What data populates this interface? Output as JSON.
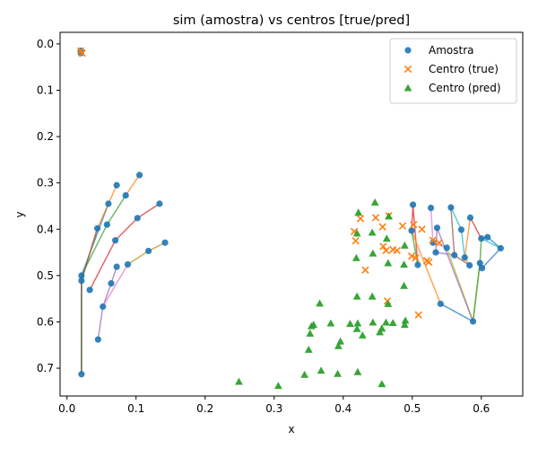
{
  "chart_data": {
    "type": "scatter",
    "title": "sim (amostra) vs centros [true/pred]",
    "xlabel": "x",
    "ylabel": "y",
    "xlim": [
      -0.01,
      0.66
    ],
    "ylim": [
      0.76,
      -0.025
    ],
    "y_inverted": true,
    "grid": false,
    "legend_position": "top-right",
    "x_ticks": [
      "0.0",
      "0.1",
      "0.2",
      "0.3",
      "0.4",
      "0.5",
      "0.6"
    ],
    "y_ticks": [
      "0.0",
      "0.1",
      "0.2",
      "0.3",
      "0.4",
      "0.5",
      "0.6",
      "0.7"
    ],
    "series": [
      {
        "name": "Amostra",
        "marker": "circle",
        "color": "#1f77b4",
        "points": [
          [
            0.02,
            0.015
          ],
          [
            0.02,
            0.02
          ],
          [
            0.105,
            0.283
          ],
          [
            0.072,
            0.305
          ],
          [
            0.085,
            0.327
          ],
          [
            0.06,
            0.345
          ],
          [
            0.134,
            0.345
          ],
          [
            0.102,
            0.376
          ],
          [
            0.058,
            0.39
          ],
          [
            0.044,
            0.398
          ],
          [
            0.142,
            0.429
          ],
          [
            0.118,
            0.447
          ],
          [
            0.07,
            0.424
          ],
          [
            0.072,
            0.481
          ],
          [
            0.088,
            0.476
          ],
          [
            0.021,
            0.5
          ],
          [
            0.021,
            0.511
          ],
          [
            0.064,
            0.517
          ],
          [
            0.033,
            0.531
          ],
          [
            0.052,
            0.567
          ],
          [
            0.045,
            0.638
          ],
          [
            0.021,
            0.713
          ],
          [
            0.501,
            0.347
          ],
          [
            0.527,
            0.354
          ],
          [
            0.556,
            0.353
          ],
          [
            0.584,
            0.375
          ],
          [
            0.536,
            0.397
          ],
          [
            0.499,
            0.403
          ],
          [
            0.571,
            0.401
          ],
          [
            0.53,
            0.429
          ],
          [
            0.55,
            0.44
          ],
          [
            0.561,
            0.456
          ],
          [
            0.534,
            0.45
          ],
          [
            0.576,
            0.461
          ],
          [
            0.6,
            0.42
          ],
          [
            0.609,
            0.417
          ],
          [
            0.628,
            0.441
          ],
          [
            0.598,
            0.473
          ],
          [
            0.601,
            0.484
          ],
          [
            0.583,
            0.478
          ],
          [
            0.508,
            0.477
          ],
          [
            0.541,
            0.561
          ],
          [
            0.588,
            0.599
          ]
        ]
      },
      {
        "name": "Centro (true)",
        "marker": "x",
        "color": "#ff7f0e",
        "points": [
          [
            0.02,
            0.015
          ],
          [
            0.022,
            0.02
          ],
          [
            0.425,
            0.377
          ],
          [
            0.447,
            0.375
          ],
          [
            0.466,
            0.371
          ],
          [
            0.457,
            0.395
          ],
          [
            0.416,
            0.405
          ],
          [
            0.486,
            0.393
          ],
          [
            0.502,
            0.39
          ],
          [
            0.514,
            0.4
          ],
          [
            0.418,
            0.425
          ],
          [
            0.458,
            0.437
          ],
          [
            0.462,
            0.446
          ],
          [
            0.472,
            0.444
          ],
          [
            0.478,
            0.446
          ],
          [
            0.499,
            0.458
          ],
          [
            0.505,
            0.462
          ],
          [
            0.521,
            0.468
          ],
          [
            0.524,
            0.471
          ],
          [
            0.53,
            0.424
          ],
          [
            0.539,
            0.429
          ],
          [
            0.432,
            0.488
          ],
          [
            0.464,
            0.555
          ],
          [
            0.509,
            0.585
          ]
        ]
      },
      {
        "name": "Centro (pred)",
        "marker": "triangle",
        "color": "#2ca02c",
        "points": [
          [
            0.446,
            0.342
          ],
          [
            0.422,
            0.364
          ],
          [
            0.466,
            0.372
          ],
          [
            0.42,
            0.409
          ],
          [
            0.442,
            0.407
          ],
          [
            0.463,
            0.42
          ],
          [
            0.443,
            0.452
          ],
          [
            0.489,
            0.435
          ],
          [
            0.419,
            0.462
          ],
          [
            0.465,
            0.473
          ],
          [
            0.488,
            0.476
          ],
          [
            0.488,
            0.522
          ],
          [
            0.42,
            0.545
          ],
          [
            0.442,
            0.545
          ],
          [
            0.465,
            0.561
          ],
          [
            0.366,
            0.56
          ],
          [
            0.382,
            0.603
          ],
          [
            0.41,
            0.604
          ],
          [
            0.421,
            0.603
          ],
          [
            0.443,
            0.601
          ],
          [
            0.462,
            0.601
          ],
          [
            0.472,
            0.602
          ],
          [
            0.489,
            0.606
          ],
          [
            0.49,
            0.597
          ],
          [
            0.357,
            0.606
          ],
          [
            0.354,
            0.609
          ],
          [
            0.352,
            0.625
          ],
          [
            0.42,
            0.615
          ],
          [
            0.428,
            0.629
          ],
          [
            0.453,
            0.622
          ],
          [
            0.456,
            0.614
          ],
          [
            0.396,
            0.642
          ],
          [
            0.393,
            0.652
          ],
          [
            0.35,
            0.66
          ],
          [
            0.368,
            0.705
          ],
          [
            0.392,
            0.712
          ],
          [
            0.421,
            0.708
          ],
          [
            0.344,
            0.714
          ],
          [
            0.249,
            0.729
          ],
          [
            0.306,
            0.738
          ],
          [
            0.456,
            0.734
          ]
        ]
      }
    ],
    "connector_lines": [
      {
        "color": "#1f77b4",
        "points": [
          [
            0.021,
            0.713
          ],
          [
            0.021,
            0.5
          ],
          [
            0.06,
            0.345
          ]
        ]
      },
      {
        "color": "#ff7f0e",
        "points": [
          [
            0.021,
            0.511
          ],
          [
            0.044,
            0.398
          ],
          [
            0.06,
            0.345
          ],
          [
            0.072,
            0.305
          ]
        ]
      },
      {
        "color": "#2ca02c",
        "points": [
          [
            0.021,
            0.713
          ],
          [
            0.021,
            0.5
          ],
          [
            0.058,
            0.39
          ],
          [
            0.085,
            0.327
          ]
        ]
      },
      {
        "color": "#d62728",
        "points": [
          [
            0.033,
            0.531
          ],
          [
            0.07,
            0.424
          ],
          [
            0.102,
            0.376
          ],
          [
            0.134,
            0.345
          ]
        ]
      },
      {
        "color": "#9467bd",
        "points": [
          [
            0.045,
            0.638
          ],
          [
            0.052,
            0.567
          ],
          [
            0.064,
            0.517
          ],
          [
            0.072,
            0.481
          ]
        ]
      },
      {
        "color": "#8c564b",
        "points": [
          [
            0.021,
            0.713
          ],
          [
            0.021,
            0.511
          ],
          [
            0.044,
            0.398
          ]
        ]
      },
      {
        "color": "#e377c2",
        "points": [
          [
            0.052,
            0.567
          ],
          [
            0.088,
            0.476
          ],
          [
            0.118,
            0.447
          ],
          [
            0.142,
            0.429
          ]
        ]
      },
      {
        "color": "#bcbd22",
        "points": [
          [
            0.088,
            0.476
          ],
          [
            0.118,
            0.447
          ],
          [
            0.142,
            0.429
          ]
        ]
      },
      {
        "color": "#ff7f0e",
        "points": [
          [
            0.085,
            0.327
          ],
          [
            0.105,
            0.283
          ]
        ]
      },
      {
        "color": "#d62728",
        "points": [
          [
            0.499,
            0.403
          ],
          [
            0.501,
            0.347
          ],
          [
            0.508,
            0.477
          ]
        ]
      },
      {
        "color": "#ff7f0e",
        "points": [
          [
            0.499,
            0.403
          ],
          [
            0.541,
            0.561
          ]
        ]
      },
      {
        "color": "#1f77b4",
        "points": [
          [
            0.541,
            0.561
          ],
          [
            0.588,
            0.599
          ]
        ]
      },
      {
        "color": "#2ca02c",
        "points": [
          [
            0.499,
            0.403
          ],
          [
            0.508,
            0.477
          ]
        ]
      },
      {
        "color": "#e377c2",
        "points": [
          [
            0.527,
            0.354
          ],
          [
            0.53,
            0.429
          ],
          [
            0.55,
            0.44
          ]
        ]
      },
      {
        "color": "#9467bd",
        "points": [
          [
            0.536,
            0.397
          ],
          [
            0.534,
            0.45
          ],
          [
            0.561,
            0.456
          ]
        ]
      },
      {
        "color": "#17becf",
        "points": [
          [
            0.556,
            0.353
          ],
          [
            0.571,
            0.401
          ],
          [
            0.576,
            0.461
          ]
        ]
      },
      {
        "color": "#8c564b",
        "points": [
          [
            0.556,
            0.353
          ],
          [
            0.561,
            0.456
          ],
          [
            0.583,
            0.478
          ]
        ]
      },
      {
        "color": "#d62728",
        "points": [
          [
            0.584,
            0.375
          ],
          [
            0.6,
            0.42
          ],
          [
            0.609,
            0.417
          ]
        ]
      },
      {
        "color": "#ff7f0e",
        "points": [
          [
            0.584,
            0.375
          ],
          [
            0.576,
            0.461
          ],
          [
            0.583,
            0.478
          ]
        ]
      },
      {
        "color": "#bcbd22",
        "points": [
          [
            0.55,
            0.44
          ],
          [
            0.588,
            0.599
          ],
          [
            0.598,
            0.473
          ]
        ]
      },
      {
        "color": "#9467bd",
        "points": [
          [
            0.536,
            0.397
          ],
          [
            0.588,
            0.599
          ]
        ]
      },
      {
        "color": "#2ca02c",
        "points": [
          [
            0.588,
            0.599
          ],
          [
            0.598,
            0.473
          ],
          [
            0.6,
            0.42
          ]
        ]
      },
      {
        "color": "#1f77b4",
        "points": [
          [
            0.598,
            0.473
          ],
          [
            0.601,
            0.484
          ],
          [
            0.628,
            0.441
          ],
          [
            0.609,
            0.417
          ]
        ]
      },
      {
        "color": "#17becf",
        "points": [
          [
            0.6,
            0.42
          ],
          [
            0.628,
            0.441
          ]
        ]
      }
    ]
  }
}
